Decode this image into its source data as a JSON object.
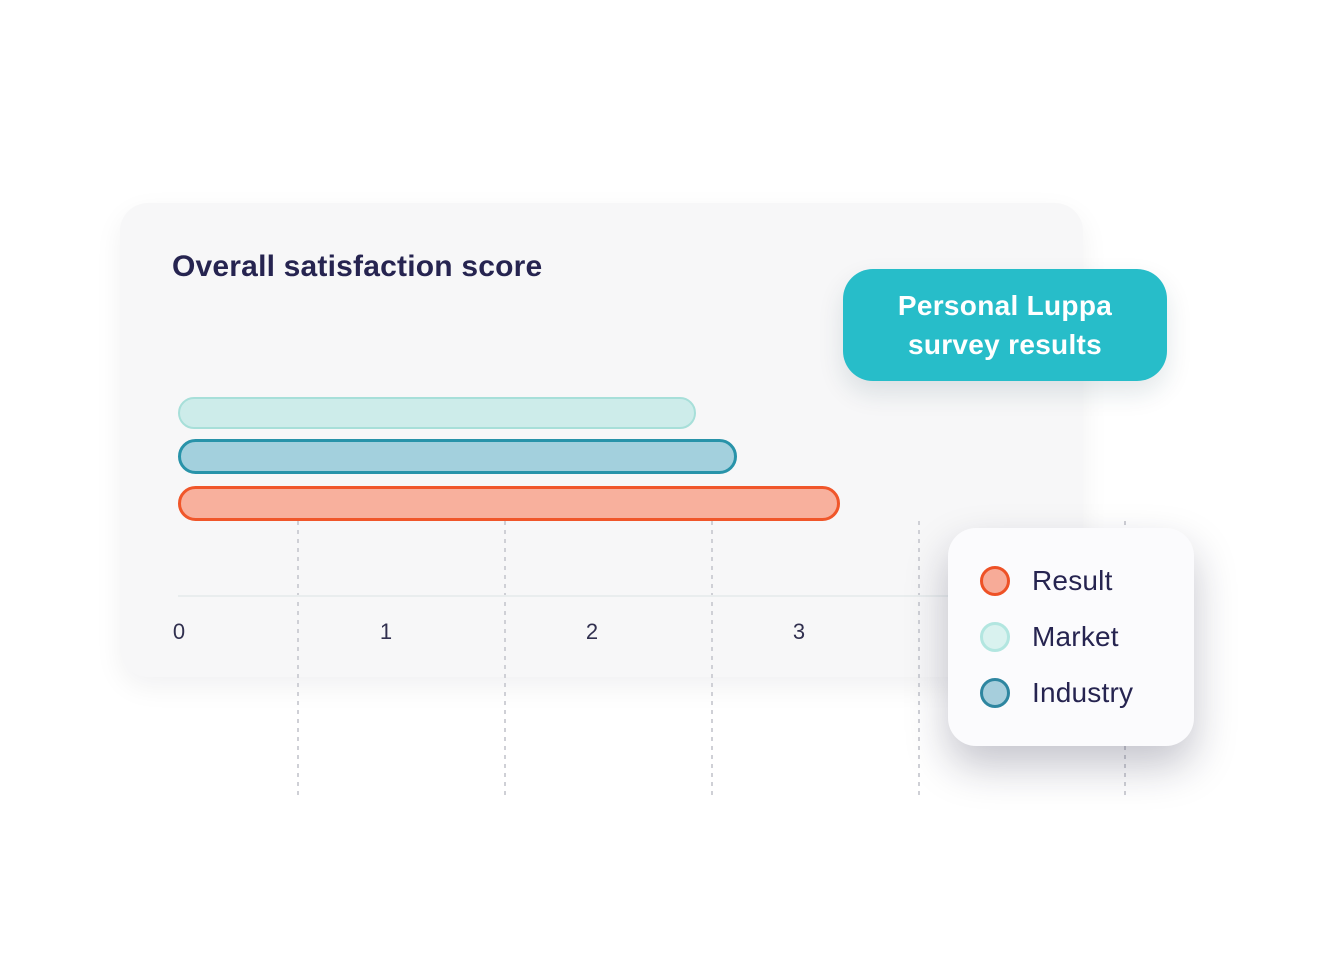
{
  "chart_data": {
    "type": "bar",
    "orientation": "horizontal",
    "title": "Overall satisfaction score",
    "series": [
      {
        "name": "Market",
        "value": 2.5,
        "fill": "#cdecea",
        "border": "#a7dfd9"
      },
      {
        "name": "Industry",
        "value": 2.7,
        "fill": "#a3d0dd",
        "border": "#2893a9"
      },
      {
        "name": "Result",
        "value": 3.2,
        "fill": "#f8b09d",
        "border": "#f0562a"
      }
    ],
    "xlim": [
      0,
      4
    ],
    "x_ticks": [
      "0",
      "1",
      "2",
      "3"
    ],
    "grid": "dashed-vertical",
    "legend_position": "bottom-right-floating"
  },
  "card": {
    "background": "#f7f7f8",
    "title_color": "#262450"
  },
  "badge": {
    "line1": "Personal Luppa",
    "line2": "survey results",
    "color": "#27bdc9",
    "text_color": "#ffffff"
  },
  "legend": {
    "items": [
      {
        "label": "Result",
        "fill": "#f7ab98",
        "border": "#ee5126"
      },
      {
        "label": "Market",
        "fill": "#d9f2ef",
        "border": "#b2e6e0"
      },
      {
        "label": "Industry",
        "fill": "#a6cedc",
        "border": "#2e86a0"
      }
    ]
  }
}
